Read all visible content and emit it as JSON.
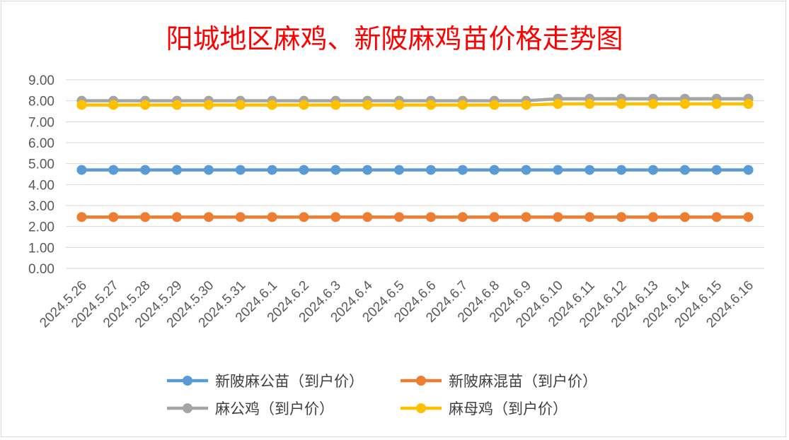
{
  "chart_data": {
    "type": "line",
    "title": "阳城地区麻鸡、新陂麻鸡苗价格走势图",
    "xlabel": "",
    "ylabel": "",
    "ylim": [
      0,
      9
    ],
    "yticks": [
      "0.00",
      "1.00",
      "2.00",
      "3.00",
      "4.00",
      "5.00",
      "6.00",
      "7.00",
      "8.00",
      "9.00"
    ],
    "grid": true,
    "legend": "bottom",
    "categories": [
      "2024.5.26",
      "2024.5.27",
      "2024.5.28",
      "2024.5.29",
      "2024.5.30",
      "2024.5.31",
      "2024.6.1",
      "2024.6.2",
      "2024.6.3",
      "2024.6.4",
      "2024.6.5",
      "2024.6.6",
      "2024.6.7",
      "2024.6.8",
      "2024.6.9",
      "2024.6.10",
      "2024.6.11",
      "2024.6.12",
      "2024.6.13",
      "2024.6.14",
      "2024.6.15",
      "2024.6.16"
    ],
    "series": [
      {
        "name": "新陂麻公苗（到户价）",
        "color": "#5b9bd5",
        "values": [
          4.7,
          4.7,
          4.7,
          4.7,
          4.7,
          4.7,
          4.7,
          4.7,
          4.7,
          4.7,
          4.7,
          4.7,
          4.7,
          4.7,
          4.7,
          4.7,
          4.7,
          4.7,
          4.7,
          4.7,
          4.7,
          4.7
        ]
      },
      {
        "name": "新陂麻混苗（到户价）",
        "color": "#ed7d31",
        "values": [
          2.45,
          2.45,
          2.45,
          2.45,
          2.45,
          2.45,
          2.45,
          2.45,
          2.45,
          2.45,
          2.45,
          2.45,
          2.45,
          2.45,
          2.45,
          2.45,
          2.45,
          2.45,
          2.45,
          2.45,
          2.45,
          2.45
        ]
      },
      {
        "name": "麻公鸡（到户价）",
        "color": "#a5a5a5",
        "values": [
          8.0,
          8.0,
          8.0,
          8.0,
          8.0,
          8.0,
          8.0,
          8.0,
          8.0,
          8.0,
          8.0,
          8.0,
          8.0,
          8.0,
          8.0,
          8.1,
          8.1,
          8.1,
          8.1,
          8.1,
          8.1,
          8.1
        ]
      },
      {
        "name": "麻母鸡（到户价）",
        "color": "#ffc000",
        "values": [
          7.8,
          7.8,
          7.8,
          7.8,
          7.8,
          7.8,
          7.8,
          7.8,
          7.8,
          7.8,
          7.8,
          7.8,
          7.8,
          7.8,
          7.8,
          7.85,
          7.85,
          7.85,
          7.85,
          7.85,
          7.85,
          7.85
        ]
      }
    ]
  }
}
